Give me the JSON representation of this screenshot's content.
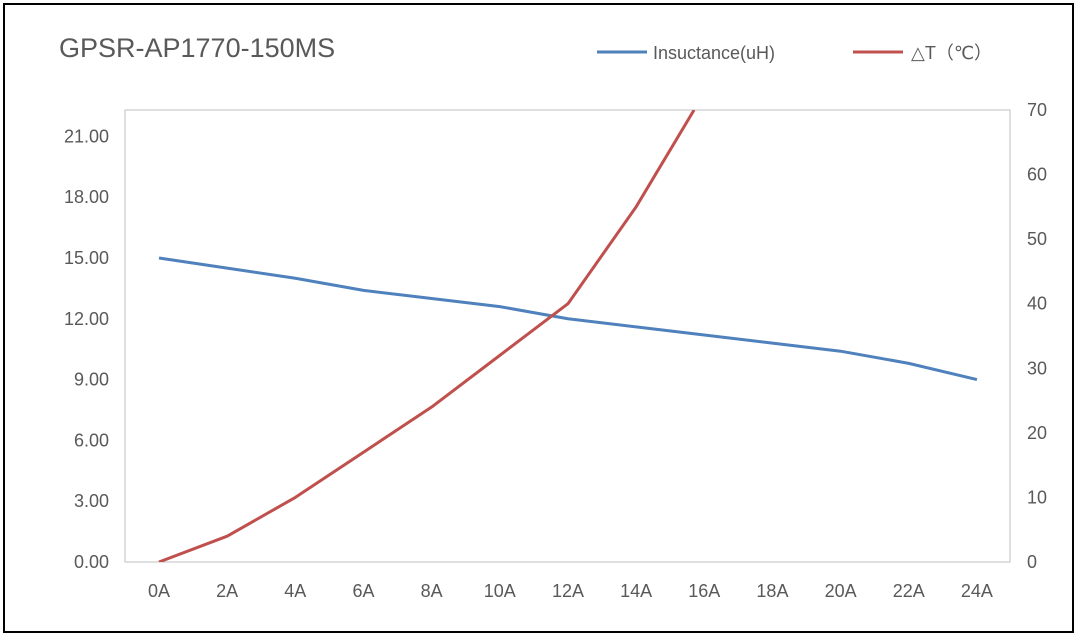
{
  "chart_data": {
    "type": "line",
    "title": "GPSR-AP1770-150MS",
    "categories": [
      "0A",
      "2A",
      "4A",
      "6A",
      "8A",
      "10A",
      "12A",
      "14A",
      "16A",
      "18A",
      "20A",
      "22A",
      "24A"
    ],
    "y_left": {
      "ylim": [
        0,
        22.3
      ],
      "ticks": [
        0,
        3,
        6,
        9,
        12,
        15,
        18,
        21
      ],
      "tick_labels": [
        "0.00",
        "3.00",
        "6.00",
        "9.00",
        "12.00",
        "15.00",
        "18.00",
        "21.00"
      ]
    },
    "y_right": {
      "ylim": [
        0,
        70
      ],
      "ticks": [
        0,
        10,
        20,
        30,
        40,
        50,
        60,
        70
      ],
      "tick_labels": [
        "0",
        "10",
        "20",
        "30",
        "40",
        "50",
        "60",
        "70"
      ]
    },
    "legend_position": "top-right",
    "grid": false,
    "series": [
      {
        "name": "Insuctance(uH)",
        "axis": "left",
        "color": "#4f81bd",
        "values": [
          15.0,
          14.5,
          14.0,
          13.4,
          13.0,
          12.6,
          12.0,
          11.6,
          11.2,
          10.8,
          10.4,
          9.8,
          9.0
        ]
      },
      {
        "name": "△T（℃）",
        "axis": "right",
        "color": "#c0504d",
        "x": [
          0,
          2,
          4,
          6,
          8,
          10,
          12,
          14,
          15.7
        ],
        "values": [
          0,
          4,
          10,
          17,
          24,
          32,
          40,
          55,
          70
        ]
      }
    ]
  }
}
